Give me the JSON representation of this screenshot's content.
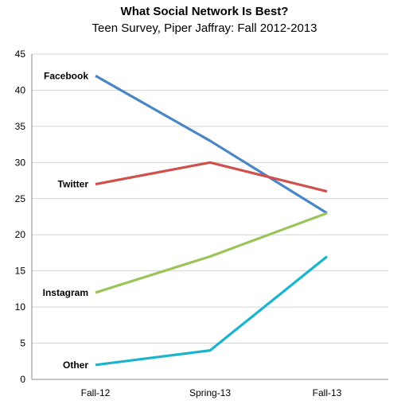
{
  "chart_data": {
    "type": "line",
    "title": "What Social Network Is Best?",
    "subtitle": "Teen Survey, Piper Jaffray: Fall 2012-2013",
    "categories": [
      "Fall-12",
      "Spring-13",
      "Fall-13"
    ],
    "ylim": [
      0,
      45
    ],
    "yticks": [
      0,
      5,
      10,
      15,
      20,
      25,
      30,
      35,
      40,
      45
    ],
    "grid": true,
    "legend": "inline labels at left",
    "series": [
      {
        "name": "Facebook",
        "values": [
          42,
          33,
          23
        ],
        "color": "#4a86c5"
      },
      {
        "name": "Twitter",
        "values": [
          27,
          30,
          26
        ],
        "color": "#d0504d"
      },
      {
        "name": "Instagram",
        "values": [
          12,
          17,
          23
        ],
        "color": "#9bc45a"
      },
      {
        "name": "Other",
        "values": [
          2,
          4,
          17
        ],
        "color": "#1ab5cc"
      }
    ]
  }
}
